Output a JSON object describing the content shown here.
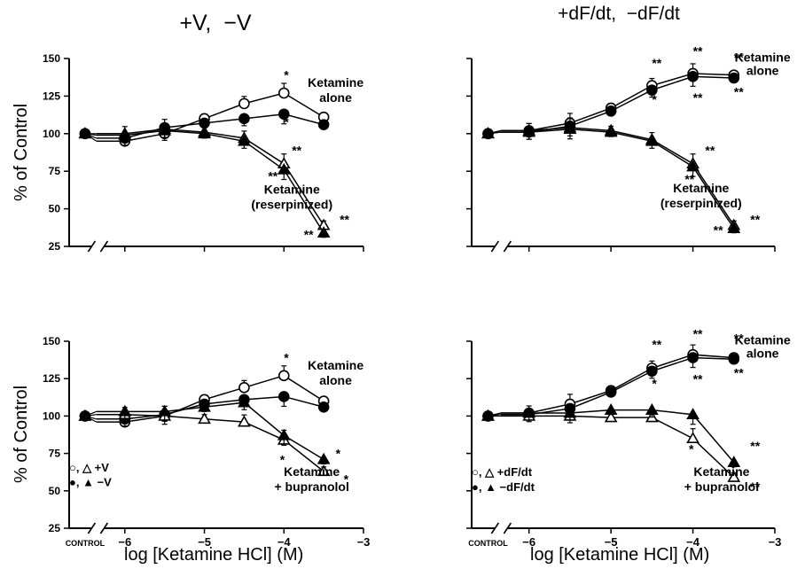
{
  "figure": {
    "col_titles": [
      "+V,  −V",
      "+dF/dt,  −dF/dt"
    ],
    "xlabel": "log [Ketamine HCl] (M)",
    "ylabel": "% of Control"
  },
  "chart_data": [
    {
      "type": "line",
      "panel": "top-left",
      "x": [
        -6.5,
        -6,
        -5.5,
        -5,
        -4.5,
        -4,
        -3.5
      ],
      "xlim": [
        -6.7,
        -3
      ],
      "ylim": [
        25,
        150
      ],
      "xticks": [],
      "yticks": [
        25,
        50,
        75,
        100,
        125,
        150
      ],
      "series": [
        {
          "marker": "circle-open",
          "values": [
            100,
            95,
            100,
            110,
            120,
            127,
            111
          ]
        },
        {
          "marker": "circle-filled",
          "values": [
            100,
            97,
            104,
            107,
            110,
            113,
            106
          ]
        },
        {
          "marker": "triangle-open",
          "values": [
            100,
            100,
            103,
            101,
            97,
            80,
            39
          ]
        },
        {
          "marker": "triangle-filled",
          "values": [
            100,
            99,
            102,
            100,
            95,
            76,
            34
          ]
        }
      ],
      "annotations": [
        {
          "text": "Ketamine",
          "x": -3.35,
          "y": 131
        },
        {
          "text": "alone",
          "x": -3.35,
          "y": 121
        },
        {
          "text": "Ketamine",
          "x": -3.9,
          "y": 60
        },
        {
          "text": "(reserpinized)",
          "x": -3.9,
          "y": 50
        },
        {
          "text": "*",
          "x": -4.0,
          "y": 136
        },
        {
          "text": "*",
          "x": -4.0,
          "y": 105
        },
        {
          "text": "**",
          "x": -3.9,
          "y": 86
        },
        {
          "text": "**",
          "x": -4.2,
          "y": 69
        },
        {
          "text": "**",
          "x": -3.3,
          "y": 40
        },
        {
          "text": "**",
          "x": -3.75,
          "y": 30
        }
      ]
    },
    {
      "type": "line",
      "panel": "top-right",
      "x": [
        -6.5,
        -6,
        -5.5,
        -5,
        -4.5,
        -4,
        -3.5
      ],
      "xlim": [
        -6.7,
        -3
      ],
      "ylim": [
        25,
        150
      ],
      "xticks": [],
      "yticks": [],
      "series": [
        {
          "marker": "circle-open",
          "values": [
            100,
            102,
            107,
            117,
            132,
            140,
            139
          ]
        },
        {
          "marker": "circle-filled",
          "values": [
            100,
            101,
            105,
            115,
            129,
            138,
            137
          ]
        },
        {
          "marker": "triangle-open",
          "values": [
            100,
            102,
            104,
            102,
            96,
            80,
            39
          ]
        },
        {
          "marker": "triangle-filled",
          "values": [
            100,
            101,
            103,
            101,
            95,
            78,
            37
          ]
        }
      ],
      "annotations": [
        {
          "text": "Ketamine",
          "x": -3.15,
          "y": 148
        },
        {
          "text": "alone",
          "x": -3.15,
          "y": 139
        },
        {
          "text": "Ketamine",
          "x": -3.9,
          "y": 61
        },
        {
          "text": "(reserpinized)",
          "x": -3.9,
          "y": 51
        },
        {
          "text": "**",
          "x": -4.5,
          "y": 144
        },
        {
          "text": "**",
          "x": -4.0,
          "y": 152
        },
        {
          "text": "**",
          "x": -3.5,
          "y": 148
        },
        {
          "text": "*",
          "x": -4.5,
          "y": 120
        },
        {
          "text": "**",
          "x": -4.0,
          "y": 121
        },
        {
          "text": "**",
          "x": -3.5,
          "y": 125
        },
        {
          "text": "**",
          "x": -3.85,
          "y": 86
        },
        {
          "text": "**",
          "x": -4.1,
          "y": 67
        },
        {
          "text": "**",
          "x": -3.3,
          "y": 40
        },
        {
          "text": "**",
          "x": -3.75,
          "y": 33
        }
      ]
    },
    {
      "type": "line",
      "panel": "bottom-left",
      "x": [
        -6.5,
        -6,
        -5.5,
        -5,
        -4.5,
        -4,
        -3.5
      ],
      "xlim": [
        -6.7,
        -3
      ],
      "ylim": [
        25,
        150
      ],
      "xticks": [
        "CONTROL",
        "−6",
        "−5",
        "−4",
        "−3"
      ],
      "yticks": [
        25,
        50,
        75,
        100,
        125,
        150
      ],
      "series": [
        {
          "marker": "circle-open",
          "values": [
            100,
            96,
            100,
            111,
            119,
            127,
            110
          ]
        },
        {
          "marker": "circle-filled",
          "values": [
            100,
            98,
            101,
            108,
            111,
            113,
            106
          ]
        },
        {
          "marker": "triangle-open",
          "values": [
            100,
            101,
            100,
            98,
            96,
            84,
            63
          ]
        },
        {
          "marker": "triangle-filled",
          "values": [
            100,
            103,
            103,
            106,
            109,
            87,
            71
          ]
        }
      ],
      "annotations": [
        {
          "text": "Ketamine",
          "x": -3.35,
          "y": 131
        },
        {
          "text": "alone",
          "x": -3.35,
          "y": 121
        },
        {
          "text": "Ketamine",
          "x": -3.65,
          "y": 60
        },
        {
          "text": "+ bupranolol",
          "x": -3.65,
          "y": 50
        },
        {
          "text": "○, △  +V",
          "x": -6.7,
          "y": 63
        },
        {
          "text": "●, ▲  −V",
          "x": -6.7,
          "y": 53
        },
        {
          "text": "*",
          "x": -4.0,
          "y": 136
        },
        {
          "text": "*",
          "x": -4.05,
          "y": 68
        },
        {
          "text": "*",
          "x": -3.35,
          "y": 72
        },
        {
          "text": "*",
          "x": -3.25,
          "y": 55
        }
      ]
    },
    {
      "type": "line",
      "panel": "bottom-right",
      "x": [
        -6.5,
        -6,
        -5.5,
        -5,
        -4.5,
        -4,
        -3.5
      ],
      "xlim": [
        -6.7,
        -3
      ],
      "ylim": [
        25,
        150
      ],
      "xticks": [
        "CONTROL",
        "−6",
        "−5",
        "−4",
        "−3"
      ],
      "yticks": [],
      "series": [
        {
          "marker": "circle-open",
          "values": [
            100,
            102,
            108,
            117,
            132,
            141,
            139
          ]
        },
        {
          "marker": "circle-filled",
          "values": [
            100,
            101,
            105,
            116,
            130,
            139,
            138
          ]
        },
        {
          "marker": "triangle-open",
          "values": [
            100,
            100,
            100,
            99,
            99,
            85,
            59
          ]
        },
        {
          "marker": "triangle-filled",
          "values": [
            100,
            102,
            102,
            104,
            104,
            101,
            69
          ]
        }
      ],
      "annotations": [
        {
          "text": "Ketamine",
          "x": -3.15,
          "y": 148
        },
        {
          "text": "alone",
          "x": -3.15,
          "y": 139
        },
        {
          "text": "Ketamine",
          "x": -3.65,
          "y": 60
        },
        {
          "text": "+ bupranolol",
          "x": -3.65,
          "y": 50
        },
        {
          "text": "○, △ +dF/dt",
          "x": -6.7,
          "y": 60
        },
        {
          "text": "●, ▲ −dF/dt",
          "x": -6.7,
          "y": 50
        },
        {
          "text": "**",
          "x": -4.5,
          "y": 145
        },
        {
          "text": "**",
          "x": -4.0,
          "y": 152
        },
        {
          "text": "**",
          "x": -3.5,
          "y": 149
        },
        {
          "text": "*",
          "x": -4.5,
          "y": 119
        },
        {
          "text": "**",
          "x": -4.0,
          "y": 122
        },
        {
          "text": "**",
          "x": -3.5,
          "y": 126
        },
        {
          "text": "*",
          "x": -4.05,
          "y": 75
        },
        {
          "text": "**",
          "x": -3.3,
          "y": 77
        },
        {
          "text": "**",
          "x": -3.3,
          "y": 50
        }
      ]
    }
  ]
}
